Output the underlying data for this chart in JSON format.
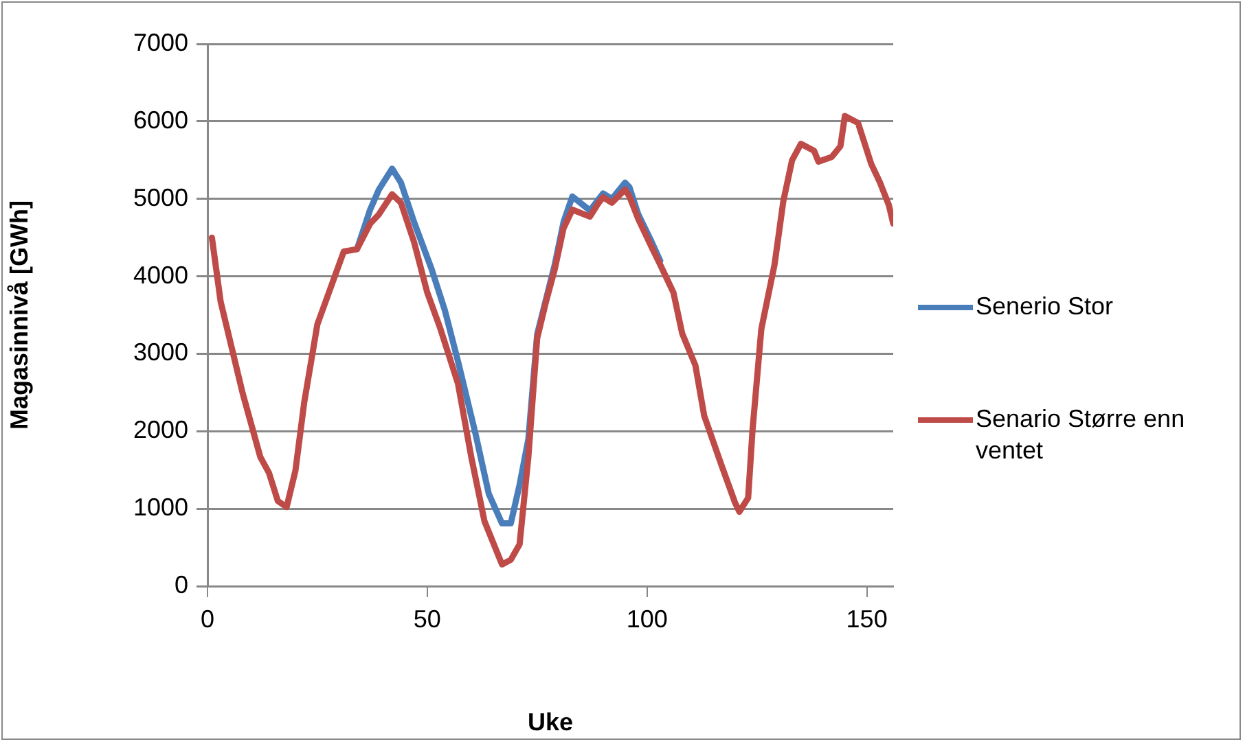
{
  "chart_data": {
    "type": "line",
    "xlabel": "Uke",
    "ylabel": "Magasinnivå [GWh]",
    "xlim": [
      0,
      156
    ],
    "xticks": [
      0,
      50,
      100,
      150
    ],
    "ylim": [
      0,
      7000
    ],
    "yticks": [
      0,
      1000,
      2000,
      3000,
      4000,
      5000,
      6000,
      7000
    ],
    "grid": "y",
    "legend": "right",
    "marker": "none",
    "line_style": "solid",
    "series": [
      {
        "name": "Senerio Stor",
        "color": "#4a7ebb",
        "x": [
          34,
          37,
          39,
          42,
          44,
          47,
          51,
          54,
          57,
          61,
          64,
          67,
          69,
          71,
          73,
          75,
          77,
          79,
          81,
          83,
          87,
          90,
          92,
          95,
          96,
          98,
          101,
          103
        ],
        "values": [
          4350,
          4860,
          5120,
          5390,
          5210,
          4700,
          4090,
          3560,
          2900,
          1960,
          1190,
          810,
          810,
          1310,
          1900,
          3250,
          3700,
          4150,
          4700,
          5030,
          4850,
          5070,
          5000,
          5210,
          5150,
          4800,
          4450,
          4200
        ]
      },
      {
        "name": "Senario Større enn ventet",
        "color": "#be4b48",
        "x": [
          1,
          3,
          8,
          12,
          14,
          16,
          18,
          20,
          22,
          25,
          28,
          31,
          34,
          37,
          39,
          42,
          44,
          47,
          50,
          53,
          57,
          60,
          63,
          67,
          69,
          71,
          73,
          75,
          77,
          79,
          81,
          83,
          87,
          89,
          90,
          92,
          95,
          96,
          98,
          101,
          103,
          106,
          108,
          111,
          113,
          117,
          120,
          121,
          123,
          124,
          126,
          129,
          131,
          133,
          135,
          138,
          139,
          142,
          144,
          145,
          148,
          151,
          153,
          155,
          156
        ],
        "values": [
          4500,
          3670,
          2490,
          1670,
          1460,
          1100,
          1020,
          1490,
          2370,
          3380,
          3850,
          4320,
          4350,
          4680,
          4800,
          5060,
          4950,
          4440,
          3790,
          3320,
          2610,
          1670,
          840,
          280,
          340,
          540,
          1670,
          3200,
          3670,
          4090,
          4620,
          4860,
          4770,
          4950,
          5020,
          4950,
          5120,
          5030,
          4740,
          4380,
          4150,
          3790,
          3260,
          2850,
          2200,
          1550,
          1080,
          960,
          1140,
          2020,
          3320,
          4150,
          4970,
          5500,
          5710,
          5620,
          5480,
          5540,
          5680,
          6070,
          5980,
          5450,
          5210,
          4920,
          4680
        ]
      }
    ]
  }
}
